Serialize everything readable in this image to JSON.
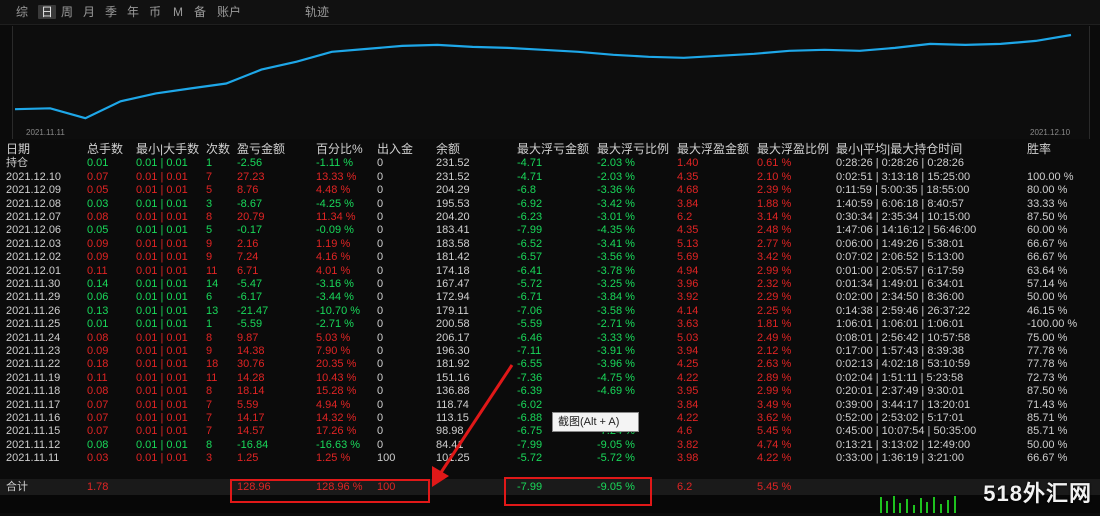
{
  "tabs": [
    {
      "label": "综",
      "active": false
    },
    {
      "label": "日",
      "active": true
    },
    {
      "label": "周",
      "active": false
    },
    {
      "label": "月",
      "active": false
    },
    {
      "label": "季",
      "active": false
    },
    {
      "label": "年",
      "active": false
    },
    {
      "label": "币",
      "active": false
    },
    {
      "label": "M",
      "active": false
    },
    {
      "label": "备",
      "active": false
    },
    {
      "label": "账户",
      "active": false
    },
    {
      "label": "轨迹",
      "active": false
    }
  ],
  "equity_chart": {
    "start_date": "2021.11.11",
    "end_date": "2021.12.10",
    "line_color": "#1ea7e8",
    "values": [
      0.24,
      0.25,
      0.15,
      0.32,
      0.4,
      0.45,
      0.5,
      0.64,
      0.72,
      0.82,
      0.85,
      0.88,
      0.89,
      0.87,
      0.86,
      0.84,
      0.82,
      0.79,
      0.77,
      0.76,
      0.78,
      0.8,
      0.83,
      0.84,
      0.83,
      0.86,
      0.9,
      0.89,
      0.9,
      0.93,
      0.99
    ]
  },
  "table": {
    "headers": [
      "日期",
      "总手数",
      "最小|大手数",
      "次数",
      "盈亏金额",
      "百分比%",
      "出入金",
      "余额",
      "最大浮亏金额",
      "最大浮亏比例",
      "最大浮盈金额",
      "最大浮盈比例",
      "最小|平均|最大持仓时间",
      "胜率"
    ],
    "rows": [
      {
        "c": [
          "持仓",
          "0.01",
          "0.01 | 0.01",
          "1",
          "-2.56",
          "-1.11 %",
          "0",
          "231.52",
          "-4.71",
          "-2.03 %",
          "1.40",
          "0.61 %",
          "0:28:26 | 0:28:26 | 0:28:26",
          ""
        ],
        "k": "g"
      },
      {
        "c": [
          "2021.12.10",
          "0.07",
          "0.01 | 0.01",
          "7",
          "27.23",
          "13.33 %",
          "0",
          "231.52",
          "-4.71",
          "-2.03 %",
          "4.35",
          "2.10 %",
          "0:02:51 | 3:13:18 | 15:25:00",
          "100.00 %"
        ],
        "k": "r"
      },
      {
        "c": [
          "2021.12.09",
          "0.05",
          "0.01 | 0.01",
          "5",
          "8.76",
          "4.48 %",
          "0",
          "204.29",
          "-6.8",
          "-3.36 %",
          "4.68",
          "2.39 %",
          "0:11:59 | 5:00:35 | 18:55:00",
          "80.00 %"
        ],
        "k": "r"
      },
      {
        "c": [
          "2021.12.08",
          "0.03",
          "0.01 | 0.01",
          "3",
          "-8.67",
          "-4.25 %",
          "0",
          "195.53",
          "-6.92",
          "-3.42 %",
          "3.84",
          "1.88 %",
          "1:40:59 | 6:06:18 | 8:40:57",
          "33.33 %"
        ],
        "k": "g"
      },
      {
        "c": [
          "2021.12.07",
          "0.08",
          "0.01 | 0.01",
          "8",
          "20.79",
          "11.34 %",
          "0",
          "204.20",
          "-6.23",
          "-3.01 %",
          "6.2",
          "3.14 %",
          "0:30:34 | 2:35:34 | 10:15:00",
          "87.50 %"
        ],
        "k": "r"
      },
      {
        "c": [
          "2021.12.06",
          "0.05",
          "0.01 | 0.01",
          "5",
          "-0.17",
          "-0.09 %",
          "0",
          "183.41",
          "-7.99",
          "-4.35 %",
          "4.35",
          "2.48 %",
          "1:47:06 | 14:16:12 | 56:46:00",
          "60.00 %"
        ],
        "k": "g"
      },
      {
        "c": [
          "2021.12.03",
          "0.09",
          "0.01 | 0.01",
          "9",
          "2.16",
          "1.19 %",
          "0",
          "183.58",
          "-6.52",
          "-3.41 %",
          "5.13",
          "2.77 %",
          "0:06:00 | 1:49:26 | 5:38:01",
          "66.67 %"
        ],
        "k": "r"
      },
      {
        "c": [
          "2021.12.02",
          "0.09",
          "0.01 | 0.01",
          "9",
          "7.24",
          "4.16 %",
          "0",
          "181.42",
          "-6.57",
          "-3.56 %",
          "5.69",
          "3.42 %",
          "0:07:02 | 2:06:52 | 5:13:00",
          "66.67 %"
        ],
        "k": "r"
      },
      {
        "c": [
          "2021.12.01",
          "0.11",
          "0.01 | 0.01",
          "11",
          "6.71",
          "4.01 %",
          "0",
          "174.18",
          "-6.41",
          "-3.78 %",
          "4.94",
          "2.99 %",
          "0:01:00 | 2:05:57 | 6:17:59",
          "63.64 %"
        ],
        "k": "r"
      },
      {
        "c": [
          "2021.11.30",
          "0.14",
          "0.01 | 0.01",
          "14",
          "-5.47",
          "-3.16 %",
          "0",
          "167.47",
          "-5.72",
          "-3.25 %",
          "3.96",
          "2.32 %",
          "0:01:34 | 1:49:01 | 6:34:01",
          "57.14 %"
        ],
        "k": "g"
      },
      {
        "c": [
          "2021.11.29",
          "0.06",
          "0.01 | 0.01",
          "6",
          "-6.17",
          "-3.44 %",
          "0",
          "172.94",
          "-6.71",
          "-3.84 %",
          "3.92",
          "2.29 %",
          "0:02:00 | 2:34:50 | 8:36:00",
          "50.00 %"
        ],
        "k": "g"
      },
      {
        "c": [
          "2021.11.26",
          "0.13",
          "0.01 | 0.01",
          "13",
          "-21.47",
          "-10.70 %",
          "0",
          "179.11",
          "-7.06",
          "-3.58 %",
          "4.14",
          "2.25 %",
          "0:14:38 | 2:59:46 | 26:37:22",
          "46.15 %"
        ],
        "k": "g"
      },
      {
        "c": [
          "2021.11.25",
          "0.01",
          "0.01 | 0.01",
          "1",
          "-5.59",
          "-2.71 %",
          "0",
          "200.58",
          "-5.59",
          "-2.71 %",
          "3.63",
          "1.81 %",
          "1:06:01 | 1:06:01 | 1:06:01",
          "-100.00 %"
        ],
        "k": "g"
      },
      {
        "c": [
          "2021.11.24",
          "0.08",
          "0.01 | 0.01",
          "8",
          "9.87",
          "5.03 %",
          "0",
          "206.17",
          "-6.46",
          "-3.33 %",
          "5.03",
          "2.49 %",
          "0:08:01 | 2:56:42 | 10:57:58",
          "75.00 %"
        ],
        "k": "r"
      },
      {
        "c": [
          "2021.11.23",
          "0.09",
          "0.01 | 0.01",
          "9",
          "14.38",
          "7.90 %",
          "0",
          "196.30",
          "-7.11",
          "-3.91 %",
          "3.94",
          "2.12 %",
          "0:17:00 | 1:57:43 | 8:39:38",
          "77.78 %"
        ],
        "k": "r"
      },
      {
        "c": [
          "2021.11.22",
          "0.18",
          "0.01 | 0.01",
          "18",
          "30.76",
          "20.35 %",
          "0",
          "181.92",
          "-6.55",
          "-3.96 %",
          "4.25",
          "2.63 %",
          "0:02:13 | 4:02:18 | 53:10:59",
          "77.78 %"
        ],
        "k": "r"
      },
      {
        "c": [
          "2021.11.19",
          "0.11",
          "0.01 | 0.01",
          "11",
          "14.28",
          "10.43 %",
          "0",
          "151.16",
          "-7.36",
          "-4.75 %",
          "4.22",
          "2.89 %",
          "0:02:04 | 1:51:11 | 5:23:58",
          "72.73 %"
        ],
        "k": "r"
      },
      {
        "c": [
          "2021.11.18",
          "0.08",
          "0.01 | 0.01",
          "8",
          "18.14",
          "15.28 %",
          "0",
          "136.88",
          "-6.39",
          "-4.69 %",
          "3.95",
          "2.99 %",
          "0:20:01 | 2:37:49 | 9:30:01",
          "87.50 %"
        ],
        "k": "r"
      },
      {
        "c": [
          "2021.11.17",
          "0.07",
          "0.01 | 0.01",
          "7",
          "5.59",
          "4.94 %",
          "0",
          "118.74",
          "-6.02",
          "",
          "3.84",
          "3.49 %",
          "0:39:00 | 3:44:17 | 13:20:01",
          "71.43 %"
        ],
        "k": "r"
      },
      {
        "c": [
          "2021.11.16",
          "0.07",
          "0.01 | 0.01",
          "7",
          "14.17",
          "14.32 %",
          "0",
          "113.15",
          "-6.88",
          "",
          "4.22",
          "3.62 %",
          "0:52:00 | 2:53:02 | 5:17:01",
          "85.71 %"
        ],
        "k": "r"
      },
      {
        "c": [
          "2021.11.15",
          "0.07",
          "0.01 | 0.01",
          "7",
          "14.57",
          "17.26 %",
          "0",
          "98.98",
          "-6.75",
          "-7.24 %",
          "4.6",
          "5.45 %",
          "0:45:00 | 10:07:54 | 50:35:00",
          "85.71 %"
        ],
        "k": "r"
      },
      {
        "c": [
          "2021.11.12",
          "0.08",
          "0.01 | 0.01",
          "8",
          "-16.84",
          "-16.63 %",
          "0",
          "84.41",
          "-7.99",
          "-9.05 %",
          "3.82",
          "4.74 %",
          "0:13:21 | 3:13:02 | 12:49:00",
          "50.00 %"
        ],
        "k": "g"
      },
      {
        "c": [
          "2021.11.11",
          "0.03",
          "0.01 | 0.01",
          "3",
          "1.25",
          "1.25 %",
          "100",
          "101.25",
          "-5.72",
          "-5.72 %",
          "3.98",
          "4.22 %",
          "0:33:00 | 1:36:19 | 3:21:00",
          "66.67 %"
        ],
        "k": "r"
      }
    ],
    "total": {
      "label": "合计",
      "lots": "1.78",
      "pnl": "128.96",
      "pct": "128.96 %",
      "deposit": "100",
      "max_loss": "-7.99",
      "max_loss_pct": "-9.05 %",
      "max_profit": "6.2",
      "max_profit_pct": "5.45 %"
    }
  },
  "tooltip": "截图(Alt + A)",
  "watermark": "518外汇网"
}
